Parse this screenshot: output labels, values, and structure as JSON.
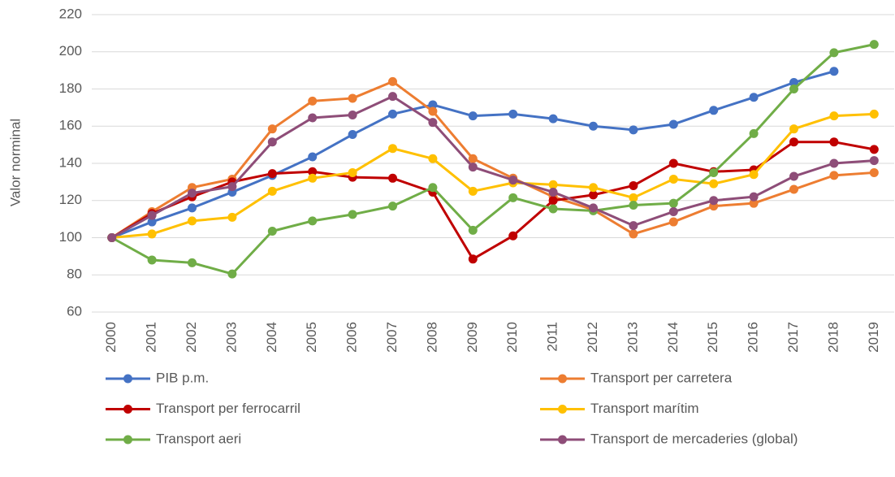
{
  "chart_data": {
    "type": "line",
    "ylabel": "Valor norminal",
    "categories": [
      "2000",
      "2001",
      "2002",
      "2003",
      "2004",
      "2005",
      "2006",
      "2007",
      "2008",
      "2009",
      "2010",
      "2011",
      "2012",
      "2013",
      "2014",
      "2015",
      "2016",
      "2017",
      "2018",
      "2019"
    ],
    "series": [
      {
        "name": "PIB p.m.",
        "color": "#4472c4",
        "values": [
          100,
          108.5,
          116,
          124.5,
          133.5,
          143.5,
          155.5,
          166.5,
          171.5,
          165.5,
          166.5,
          164,
          160,
          158,
          161,
          168.5,
          175.5,
          183.5,
          189.5,
          null
        ]
      },
      {
        "name": "Transport per carretera",
        "color": "#ed7d31",
        "values": [
          100,
          114,
          127,
          131.5,
          158.5,
          173.5,
          175,
          184,
          168,
          142.5,
          132,
          122,
          115,
          102,
          108.5,
          117,
          118.5,
          126,
          133.5,
          135
        ]
      },
      {
        "name": "Transport per ferrocarril",
        "color": "#c00000",
        "values": [
          100,
          113,
          122,
          130,
          134.5,
          135.5,
          132.5,
          132,
          124.5,
          88.5,
          101,
          120,
          123,
          128,
          140,
          135.5,
          136.5,
          151.5,
          151.5,
          147.5
        ]
      },
      {
        "name": "Transport marítim",
        "color": "#ffc000",
        "values": [
          100,
          102,
          109,
          111,
          125,
          132,
          135,
          148,
          142.5,
          125,
          129.5,
          128.5,
          127,
          121.5,
          131.5,
          129,
          134,
          158.5,
          165.5,
          166.5
        ]
      },
      {
        "name": "Transport aeri",
        "color": "#70ad47",
        "values": [
          100,
          88,
          86.5,
          80.5,
          103.5,
          109,
          112.5,
          117,
          127,
          104,
          121.5,
          115.5,
          114.5,
          117.5,
          118.5,
          135,
          156,
          180,
          199.5,
          204
        ]
      },
      {
        "name": "Transport de mercaderies (global)",
        "color": "#8e4d78",
        "values": [
          100,
          112,
          124,
          127.5,
          151.5,
          164.5,
          166,
          176,
          162,
          138,
          131,
          124.5,
          116,
          106.5,
          114,
          120,
          122,
          133,
          140,
          141.5
        ]
      }
    ],
    "ylim": [
      60,
      220
    ],
    "yticks": [
      60,
      80,
      100,
      120,
      140,
      160,
      180,
      200,
      220
    ],
    "grid": true,
    "legend": "bottom"
  }
}
